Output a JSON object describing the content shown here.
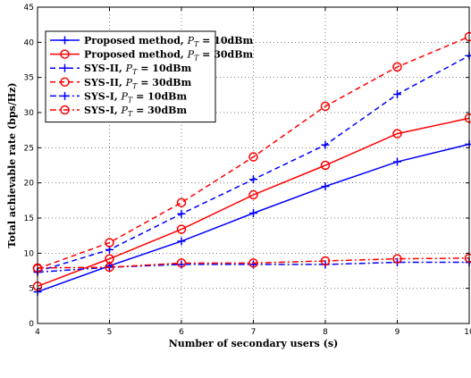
{
  "chart_data": {
    "type": "line",
    "xlabel": "Number of secondary users (s)",
    "ylabel": "Total achievable rate (bps/Hz)",
    "xlim": [
      4,
      10
    ],
    "ylim": [
      0,
      45
    ],
    "x_ticks": [
      4,
      5,
      6,
      7,
      8,
      9,
      10
    ],
    "y_ticks": [
      0,
      5,
      10,
      15,
      20,
      25,
      30,
      35,
      40,
      45
    ],
    "grid": true,
    "legend_position": "top-left",
    "x": [
      4,
      5,
      6,
      7,
      8,
      9,
      10
    ],
    "series": [
      {
        "label_main": "Proposed method, ",
        "label_var": "P",
        "label_sub": "T",
        "label_rest": " = 10dBm",
        "color": "#0000ff",
        "dash": "solid",
        "marker": "plus",
        "values": [
          4.5,
          8.2,
          11.7,
          15.7,
          19.5,
          23.0,
          25.5
        ]
      },
      {
        "label_main": "Proposed method, ",
        "label_var": "P",
        "label_sub": "T",
        "label_rest": " = 30dBm",
        "color": "#ff0000",
        "dash": "solid",
        "marker": "circle",
        "values": [
          5.3,
          9.2,
          13.4,
          18.3,
          22.5,
          27.0,
          29.2
        ]
      },
      {
        "label_main": "SYS-II, ",
        "label_var": "P",
        "label_sub": "T",
        "label_rest": " = 10dBm",
        "color": "#0000ff",
        "dash": "dashed",
        "marker": "plus",
        "values": [
          7.4,
          10.5,
          15.6,
          20.5,
          25.4,
          32.6,
          38.1
        ]
      },
      {
        "label_main": "SYS-II, ",
        "label_var": "P",
        "label_sub": "T",
        "label_rest": " = 30dBm",
        "color": "#ff0000",
        "dash": "dashed",
        "marker": "circle",
        "values": [
          7.8,
          11.5,
          17.2,
          23.7,
          30.9,
          36.5,
          40.8
        ]
      },
      {
        "label_main": "SYS-I, ",
        "label_var": "P",
        "label_sub": "T",
        "label_rest": " = 10dBm",
        "color": "#0000ff",
        "dash": "dashdot",
        "marker": "plus",
        "values": [
          7.3,
          8.0,
          8.4,
          8.4,
          8.4,
          8.7,
          8.7
        ]
      },
      {
        "label_main": "SYS-I, ",
        "label_var": "P",
        "label_sub": "T",
        "label_rest": " = 30dBm",
        "color": "#ff0000",
        "dash": "dashdot",
        "marker": "circle",
        "values": [
          7.9,
          8.0,
          8.6,
          8.6,
          8.9,
          9.2,
          9.3
        ]
      }
    ]
  }
}
